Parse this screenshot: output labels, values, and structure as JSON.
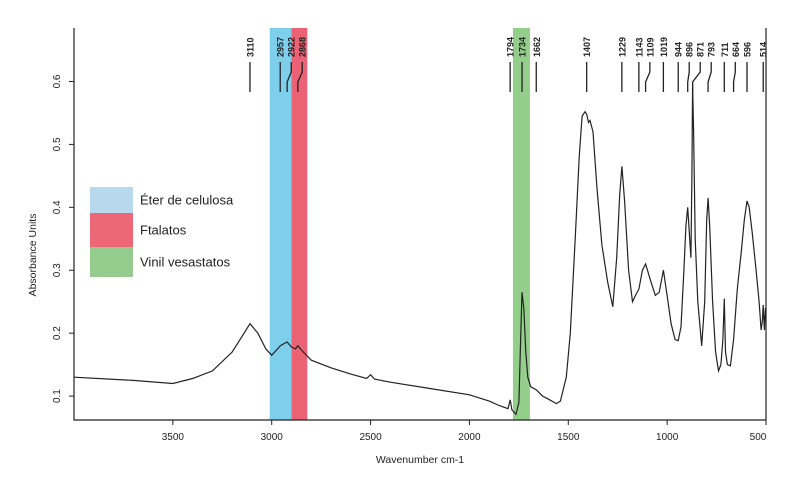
{
  "chart_data": {
    "type": "line",
    "xlabel": "Wavenumber cm-1",
    "ylabel": "Absorbance Units",
    "xlim": [
      4000,
      500
    ],
    "ylim": [
      0.062,
      0.685
    ],
    "x_reversed": true,
    "grid": false,
    "x_ticks": [
      3500,
      3000,
      2500,
      2000,
      1500,
      1000,
      500
    ],
    "y_ticks": [
      0.1,
      0.2,
      0.3,
      0.4,
      0.5,
      0.6
    ],
    "series": [
      {
        "color": "#222222",
        "points": [
          [
            4000,
            0.13
          ],
          [
            3700,
            0.125
          ],
          [
            3500,
            0.12
          ],
          [
            3400,
            0.128
          ],
          [
            3300,
            0.14
          ],
          [
            3200,
            0.17
          ],
          [
            3150,
            0.195
          ],
          [
            3110,
            0.215
          ],
          [
            3070,
            0.2
          ],
          [
            3030,
            0.175
          ],
          [
            3000,
            0.165
          ],
          [
            2970,
            0.175
          ],
          [
            2957,
            0.18
          ],
          [
            2940,
            0.183
          ],
          [
            2922,
            0.186
          ],
          [
            2900,
            0.178
          ],
          [
            2880,
            0.175
          ],
          [
            2868,
            0.18
          ],
          [
            2840,
            0.17
          ],
          [
            2800,
            0.157
          ],
          [
            2700,
            0.145
          ],
          [
            2600,
            0.135
          ],
          [
            2520,
            0.128
          ],
          [
            2500,
            0.134
          ],
          [
            2480,
            0.127
          ],
          [
            2400,
            0.122
          ],
          [
            2200,
            0.112
          ],
          [
            2000,
            0.102
          ],
          [
            1900,
            0.092
          ],
          [
            1850,
            0.085
          ],
          [
            1805,
            0.08
          ],
          [
            1794,
            0.094
          ],
          [
            1785,
            0.078
          ],
          [
            1765,
            0.071
          ],
          [
            1750,
            0.09
          ],
          [
            1740,
            0.2
          ],
          [
            1734,
            0.265
          ],
          [
            1725,
            0.24
          ],
          [
            1715,
            0.17
          ],
          [
            1705,
            0.13
          ],
          [
            1690,
            0.115
          ],
          [
            1662,
            0.11
          ],
          [
            1630,
            0.1
          ],
          [
            1600,
            0.095
          ],
          [
            1560,
            0.088
          ],
          [
            1540,
            0.092
          ],
          [
            1510,
            0.13
          ],
          [
            1490,
            0.2
          ],
          [
            1465,
            0.35
          ],
          [
            1445,
            0.48
          ],
          [
            1430,
            0.545
          ],
          [
            1415,
            0.552
          ],
          [
            1407,
            0.548
          ],
          [
            1398,
            0.535
          ],
          [
            1390,
            0.538
          ],
          [
            1375,
            0.52
          ],
          [
            1355,
            0.43
          ],
          [
            1330,
            0.34
          ],
          [
            1300,
            0.28
          ],
          [
            1275,
            0.242
          ],
          [
            1255,
            0.32
          ],
          [
            1240,
            0.42
          ],
          [
            1229,
            0.465
          ],
          [
            1215,
            0.41
          ],
          [
            1195,
            0.3
          ],
          [
            1175,
            0.25
          ],
          [
            1160,
            0.26
          ],
          [
            1143,
            0.27
          ],
          [
            1125,
            0.3
          ],
          [
            1109,
            0.31
          ],
          [
            1085,
            0.285
          ],
          [
            1060,
            0.26
          ],
          [
            1040,
            0.265
          ],
          [
            1019,
            0.3
          ],
          [
            1000,
            0.26
          ],
          [
            980,
            0.215
          ],
          [
            960,
            0.19
          ],
          [
            944,
            0.188
          ],
          [
            930,
            0.21
          ],
          [
            915,
            0.3
          ],
          [
            905,
            0.37
          ],
          [
            896,
            0.4
          ],
          [
            888,
            0.36
          ],
          [
            880,
            0.32
          ],
          [
            875,
            0.45
          ],
          [
            871,
            0.595
          ],
          [
            866,
            0.52
          ],
          [
            858,
            0.35
          ],
          [
            845,
            0.25
          ],
          [
            825,
            0.18
          ],
          [
            810,
            0.25
          ],
          [
            800,
            0.38
          ],
          [
            793,
            0.415
          ],
          [
            785,
            0.37
          ],
          [
            770,
            0.25
          ],
          [
            755,
            0.17
          ],
          [
            740,
            0.14
          ],
          [
            728,
            0.15
          ],
          [
            718,
            0.19
          ],
          [
            711,
            0.255
          ],
          [
            705,
            0.17
          ],
          [
            695,
            0.15
          ],
          [
            680,
            0.148
          ],
          [
            664,
            0.19
          ],
          [
            645,
            0.27
          ],
          [
            625,
            0.33
          ],
          [
            610,
            0.38
          ],
          [
            596,
            0.41
          ],
          [
            585,
            0.4
          ],
          [
            570,
            0.36
          ],
          [
            550,
            0.3
          ],
          [
            535,
            0.25
          ],
          [
            525,
            0.205
          ],
          [
            518,
            0.22
          ],
          [
            514,
            0.245
          ],
          [
            508,
            0.205
          ],
          [
            503,
            0.24
          ],
          [
            500,
            0.235
          ]
        ]
      }
    ],
    "peak_labels": [
      "3110",
      "2957",
      "2922",
      "2868",
      "1794",
      "1734",
      "1662",
      "1407",
      "1229",
      "1143",
      "1109",
      "1019",
      "944",
      "896",
      "871",
      "793",
      "711",
      "664",
      "596",
      "514"
    ],
    "bands": [
      {
        "name": "Éter de celulosa",
        "from": 3010,
        "to": 2900,
        "color": "#7ecfec"
      },
      {
        "name": "Ftalatos",
        "from": 2900,
        "to": 2820,
        "color": "#eb6274"
      },
      {
        "name": "Vinil vesastatos",
        "from": 1780,
        "to": 1694,
        "color": "#93cf8b"
      }
    ],
    "legend": {
      "placement": "left",
      "entries": [
        {
          "label": "Éter de celulosa",
          "color": "#b8d8ee"
        },
        {
          "label": "Ftalatos",
          "color": "#ec6878"
        },
        {
          "label": "Vinil vesastatos",
          "color": "#93cc8d"
        }
      ]
    }
  }
}
